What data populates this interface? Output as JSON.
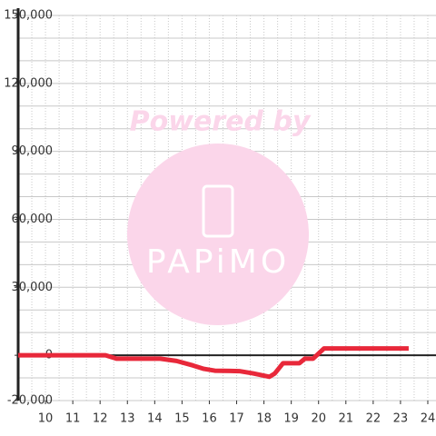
{
  "chart_data": {
    "type": "line",
    "watermark": {
      "line1": "Powered by",
      "line2": "PAPiMO"
    },
    "x": [
      9.0,
      12.2,
      12.6,
      14.2,
      14.8,
      15.4,
      15.8,
      16.2,
      17.1,
      17.6,
      18.0,
      18.2,
      18.4,
      18.7,
      19.3,
      19.5,
      19.8,
      20.2,
      23.3
    ],
    "series": [
      {
        "color": "#e8283a",
        "values": [
          0,
          0,
          -1500,
          -1500,
          -2500,
          -4500,
          -6000,
          -6800,
          -7000,
          -8000,
          -9000,
          -9500,
          -8000,
          -3500,
          -3500,
          -1500,
          -1500,
          3000,
          3000
        ]
      }
    ],
    "xlim": [
      9,
      24.3
    ],
    "xticks": [
      10,
      11,
      12,
      13,
      14,
      15,
      16,
      17,
      18,
      19,
      20,
      21,
      22,
      23,
      24
    ],
    "ylim": [
      -20000,
      150000
    ],
    "yticks": [
      {
        "value": -20000,
        "label": "-20,000"
      },
      {
        "value": 0,
        "label": "0"
      },
      {
        "value": 30000,
        "label": "30,000"
      },
      {
        "value": 60000,
        "label": "60,000"
      },
      {
        "value": 90000,
        "label": "90,000"
      },
      {
        "value": 120000,
        "label": "120,000"
      },
      {
        "value": 150000,
        "label": "150,000"
      }
    ],
    "y_grid_step": 10000,
    "x_grid_step": 0.5,
    "grid": true
  }
}
